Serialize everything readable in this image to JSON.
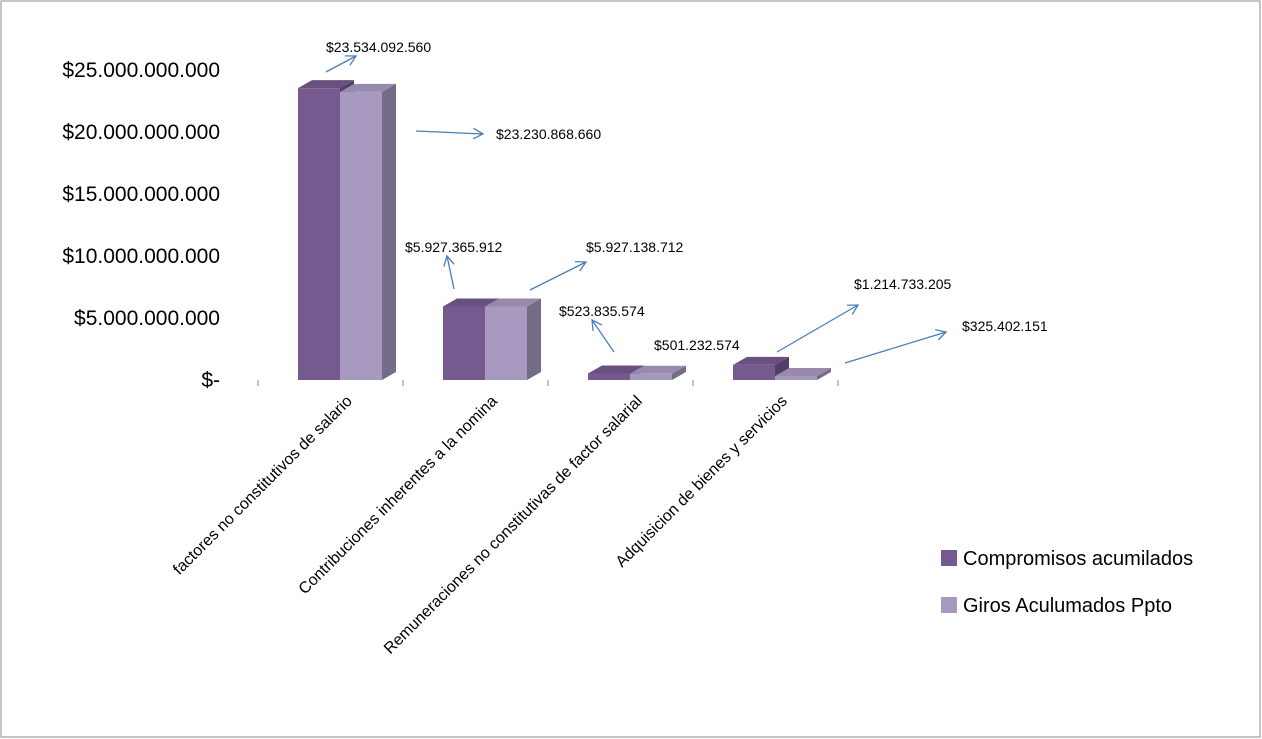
{
  "chart_data": {
    "type": "bar",
    "style": "3d-clustered-column",
    "categories": [
      "factores no constitutivos de salario",
      "Contribuciones inherentes a la nomina",
      "Remuneraciones no constitutivas de factor salarial",
      "Adquisicion de bienes y servicios"
    ],
    "series": [
      {
        "name": "Compromisos acumilados",
        "color": "#76598f",
        "values": [
          23534092560,
          5927365912,
          523835574,
          1214733205
        ]
      },
      {
        "name": "Giros Aculumados Ppto",
        "color": "#a899c0",
        "values": [
          23230868660,
          5927138712,
          501232574,
          325402151
        ]
      }
    ],
    "data_labels": [
      [
        "$23.534.092.560",
        "$5.927.365.912",
        "$523.835.574",
        "$1.214.733.205"
      ],
      [
        "$23.230.868.660",
        "$5.927.138.712",
        "$501.232.574",
        "$325.402.151"
      ]
    ],
    "y_tick_labels": [
      "$-",
      "$5.000.000.000",
      "$10.000.000.000",
      "$15.000.000.000",
      "$20.000.000.000",
      "$25.000.000.000"
    ],
    "ylim": [
      0,
      25000000000
    ],
    "title": "",
    "xlabel": "",
    "ylabel": "",
    "grid": false,
    "legend_position": "right",
    "arrow_color": "#4a7ebb"
  }
}
